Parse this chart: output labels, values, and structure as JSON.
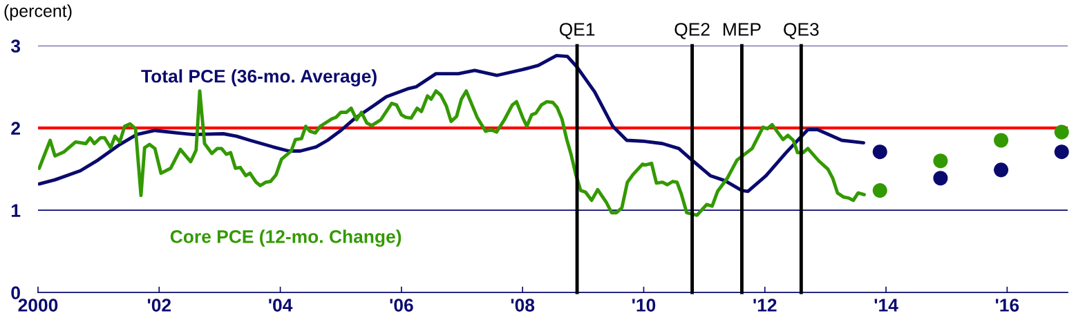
{
  "chart_data": {
    "type": "line",
    "ylabel": "(percent)",
    "xlim": [
      2000,
      2017
    ],
    "xticks": [
      {
        "value": 2000,
        "label": "2000"
      },
      {
        "value": 2002,
        "label": "'02"
      },
      {
        "value": 2004,
        "label": "'04"
      },
      {
        "value": 2006,
        "label": "'06"
      },
      {
        "value": 2008,
        "label": "'08"
      },
      {
        "value": 2010,
        "label": "'10"
      },
      {
        "value": 2012,
        "label": "'12"
      },
      {
        "value": 2014,
        "label": "'14"
      },
      {
        "value": 2016,
        "label": "'16"
      }
    ],
    "ylim": [
      0,
      3
    ],
    "yticks": [
      0,
      1,
      2,
      3
    ],
    "marker": "none",
    "line_style": "solid",
    "series": [
      {
        "name": "Total PCE (36-mo. Average)",
        "color": "#0a0a6e",
        "x": [
          2000.02,
          2000.28,
          2000.7,
          2000.99,
          2001.33,
          2001.63,
          2001.93,
          2002.3,
          2002.56,
          2003.06,
          2003.28,
          2003.5,
          2003.88,
          2004.14,
          2004.33,
          2004.59,
          2004.78,
          2005.0,
          2005.22,
          2005.56,
          2005.75,
          2006.12,
          2006.24,
          2006.57,
          2006.94,
          2007.21,
          2007.58,
          2008.0,
          2008.26,
          2008.56,
          2008.74,
          2008.9,
          2009.19,
          2009.49,
          2009.72,
          2009.98,
          2010.31,
          2010.58,
          2010.78,
          2011.1,
          2011.34,
          2011.62,
          2011.72,
          2012.02,
          2012.35,
          2012.71,
          2012.87,
          2013.27,
          2013.63
        ],
        "values": [
          1.32,
          1.37,
          1.48,
          1.61,
          1.79,
          1.92,
          1.97,
          1.94,
          1.92,
          1.93,
          1.9,
          1.85,
          1.77,
          1.72,
          1.72,
          1.77,
          1.85,
          1.97,
          2.11,
          2.28,
          2.38,
          2.48,
          2.5,
          2.66,
          2.66,
          2.7,
          2.64,
          2.71,
          2.76,
          2.88,
          2.87,
          2.74,
          2.44,
          2.02,
          1.85,
          1.84,
          1.81,
          1.75,
          1.62,
          1.42,
          1.36,
          1.24,
          1.23,
          1.42,
          1.7,
          1.98,
          1.98,
          1.85,
          1.82
        ]
      },
      {
        "name": "Core PCE (12-mo. Change)",
        "color": "#339900",
        "x": [
          2000.02,
          2000.2,
          2000.28,
          2000.43,
          2000.62,
          2000.79,
          2000.86,
          2000.93,
          2001.03,
          2001.1,
          2001.2,
          2001.27,
          2001.35,
          2001.43,
          2001.52,
          2001.61,
          2001.7,
          2001.76,
          2001.84,
          2001.93,
          2002.03,
          2002.19,
          2002.35,
          2002.52,
          2002.61,
          2002.67,
          2002.75,
          2002.87,
          2002.96,
          2003.03,
          2003.11,
          2003.18,
          2003.26,
          2003.34,
          2003.43,
          2003.5,
          2003.6,
          2003.67,
          2003.76,
          2003.84,
          2003.93,
          2004.02,
          2004.18,
          2004.25,
          2004.35,
          2004.42,
          2004.49,
          2004.58,
          2004.66,
          2004.85,
          2004.92,
          2005.0,
          2005.09,
          2005.17,
          2005.26,
          2005.34,
          2005.43,
          2005.51,
          2005.66,
          2005.84,
          2005.92,
          2006.0,
          2006.07,
          2006.16,
          2006.26,
          2006.33,
          2006.43,
          2006.49,
          2006.57,
          2006.65,
          2006.74,
          2006.82,
          2006.91,
          2006.99,
          2007.07,
          2007.16,
          2007.25,
          2007.39,
          2007.48,
          2007.57,
          2007.7,
          2007.83,
          2007.9,
          2008.0,
          2008.07,
          2008.15,
          2008.22,
          2008.31,
          2008.4,
          2008.5,
          2008.57,
          2008.65,
          2008.73,
          2008.8,
          2008.88,
          2008.96,
          2009.04,
          2009.14,
          2009.24,
          2009.38,
          2009.47,
          2009.55,
          2009.64,
          2009.73,
          2009.83,
          2009.98,
          2010.03,
          2010.13,
          2010.21,
          2010.31,
          2010.39,
          2010.48,
          2010.55,
          2010.62,
          2010.71,
          2010.88,
          2011.04,
          2011.13,
          2011.22,
          2011.33,
          2011.38,
          2011.54,
          2011.79,
          2011.97,
          2012.04,
          2012.12,
          2012.3,
          2012.38,
          2012.47,
          2012.54,
          2012.63,
          2012.71,
          2012.89,
          2013.04,
          2013.12,
          2013.2,
          2013.3,
          2013.38,
          2013.46,
          2013.54,
          2013.64
        ],
        "values": [
          1.51,
          1.85,
          1.66,
          1.71,
          1.83,
          1.81,
          1.88,
          1.81,
          1.88,
          1.88,
          1.76,
          1.9,
          1.83,
          2.02,
          2.05,
          1.99,
          1.18,
          1.76,
          1.8,
          1.75,
          1.45,
          1.51,
          1.74,
          1.59,
          1.73,
          2.45,
          1.81,
          1.69,
          1.75,
          1.75,
          1.68,
          1.7,
          1.51,
          1.52,
          1.42,
          1.45,
          1.34,
          1.3,
          1.34,
          1.35,
          1.43,
          1.62,
          1.72,
          1.86,
          1.87,
          2.02,
          1.96,
          1.94,
          2.02,
          2.11,
          2.13,
          2.19,
          2.19,
          2.24,
          2.1,
          2.19,
          2.06,
          2.03,
          2.1,
          2.3,
          2.28,
          2.16,
          2.13,
          2.12,
          2.24,
          2.2,
          2.39,
          2.35,
          2.45,
          2.4,
          2.27,
          2.08,
          2.14,
          2.35,
          2.45,
          2.29,
          2.13,
          1.96,
          1.98,
          1.95,
          2.1,
          2.28,
          2.32,
          2.13,
          2.02,
          2.16,
          2.18,
          2.28,
          2.32,
          2.31,
          2.25,
          2.11,
          1.86,
          1.68,
          1.43,
          1.24,
          1.22,
          1.12,
          1.25,
          1.1,
          0.97,
          0.97,
          1.03,
          1.34,
          1.44,
          1.56,
          1.55,
          1.57,
          1.33,
          1.34,
          1.31,
          1.35,
          1.34,
          1.2,
          0.97,
          0.94,
          1.07,
          1.05,
          1.23,
          1.34,
          1.39,
          1.61,
          1.75,
          2.01,
          1.99,
          2.04,
          1.86,
          1.91,
          1.85,
          1.7,
          1.7,
          1.75,
          1.6,
          1.5,
          1.39,
          1.21,
          1.16,
          1.15,
          1.12,
          1.21,
          1.19
        ]
      },
      {
        "type": "scatter",
        "marker": "circle",
        "color": "#0a0a6e",
        "x": [
          2013.9,
          2014.9,
          2015.9,
          2016.9
        ],
        "values": [
          1.71,
          1.39,
          1.49,
          1.71
        ]
      },
      {
        "type": "scatter",
        "marker": "circle",
        "color": "#339900",
        "x": [
          2013.9,
          2014.9,
          2015.9,
          2016.9
        ],
        "values": [
          1.24,
          1.6,
          1.85,
          1.95
        ]
      }
    ],
    "ref_lines": [
      {
        "axis": "y",
        "value": 1,
        "color": "#0a0a6e"
      },
      {
        "axis": "y",
        "value": 3,
        "color": "#0a0a6e"
      },
      {
        "axis": "y",
        "value": 2,
        "color": "#ff0000"
      },
      {
        "axis": "x",
        "value": 2008.9,
        "label": "QE1",
        "color": "#000000"
      },
      {
        "axis": "x",
        "value": 2010.8,
        "label": "QE2",
        "color": "#000000"
      },
      {
        "axis": "x",
        "value": 2011.62,
        "label": "MEP",
        "color": "#000000"
      },
      {
        "axis": "x",
        "value": 2012.6,
        "label": "QE3",
        "color": "#000000"
      }
    ]
  }
}
